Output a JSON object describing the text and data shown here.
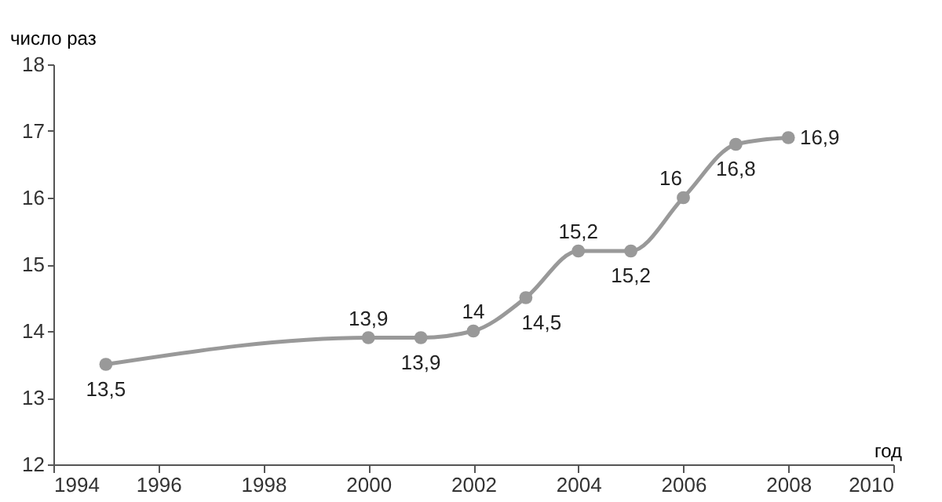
{
  "chart_data": {
    "type": "line",
    "ylabel": "число раз",
    "xlabel": "год",
    "x": [
      1995,
      2000,
      2001,
      2002,
      2003,
      2004,
      2005,
      2006,
      2007,
      2008
    ],
    "series": [
      {
        "color": "#999999",
        "values": [
          13.5,
          13.9,
          13.9,
          14,
          14.5,
          15.2,
          15.2,
          16,
          16.8,
          16.9
        ],
        "value_labels": [
          "13,5",
          "13,9",
          "13,9",
          "14",
          "14,5",
          "15,2",
          "15,2",
          "16",
          "16,8",
          "16,9"
        ]
      }
    ],
    "xlim": [
      1994,
      2010
    ],
    "xticks": [
      1994,
      1996,
      1998,
      2000,
      2002,
      2004,
      2006,
      2008,
      2010
    ],
    "ylim": [
      12,
      18
    ],
    "yticks": [
      12,
      13,
      14,
      15,
      16,
      17,
      18
    ],
    "marker": "circle",
    "line_style": "solid",
    "grid": false
  }
}
